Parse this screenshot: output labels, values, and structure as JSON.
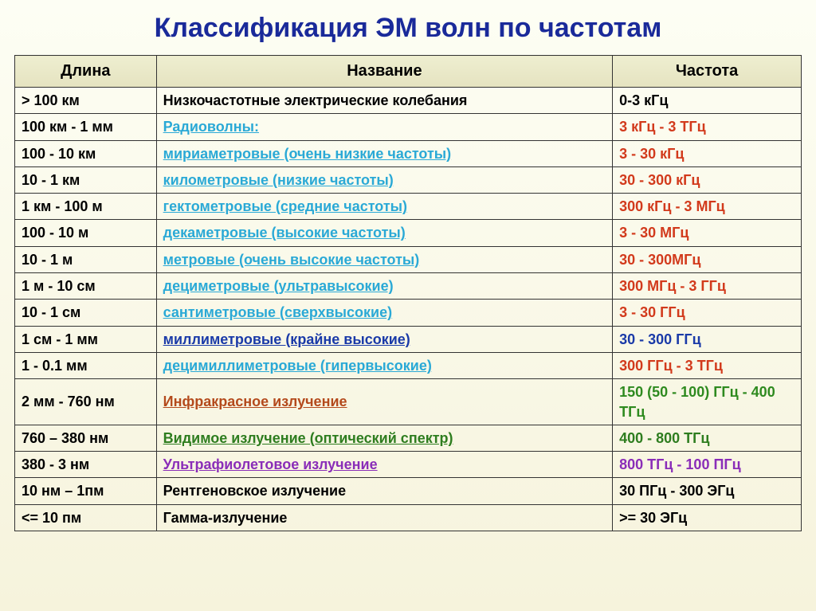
{
  "title": "Классификация ЭМ волн по частотам",
  "columns": [
    "Длина",
    "Название",
    "Частота"
  ],
  "rows": [
    {
      "length": "> 100 км",
      "name": "Низкочастотные электрические колебания",
      "freq": "0-3 кГц",
      "name_color": "#000000",
      "freq_color": "#000000",
      "name_bold": true,
      "name_underline": false
    },
    {
      "length": "100 км - 1 мм",
      "name": "Радиоволны:",
      "freq": "3 кГц - 3 ТГц",
      "name_color": "#2aa9d6",
      "freq_color": "#d23a1c",
      "name_bold": true,
      "name_underline": true
    },
    {
      "length": "100 - 10 км",
      "name": "мириаметровые (очень низкие частоты)",
      "freq": "3 - 30 кГц",
      "name_color": "#2aa9d6",
      "freq_color": "#d23a1c",
      "name_bold": true,
      "name_underline": true
    },
    {
      "length": "10 - 1 км",
      "name": "километровые (низкие частоты)",
      "freq": "30 - 300 кГц",
      "name_color": "#2aa9d6",
      "freq_color": "#d23a1c",
      "name_bold": true,
      "name_underline": true
    },
    {
      "length": "1 км - 100 м",
      "name": "гектометровые (средние частоты)",
      "freq": "300 кГц - 3 МГц",
      "name_color": "#2aa9d6",
      "freq_color": "#d23a1c",
      "name_bold": true,
      "name_underline": true
    },
    {
      "length": "100 - 10 м",
      "name": "декаметровые (высокие частоты)",
      "freq": "3 - 30 МГц",
      "name_color": "#2aa9d6",
      "freq_color": "#d23a1c",
      "name_bold": true,
      "name_underline": true
    },
    {
      "length": "10 - 1 м",
      "name": "метровые (очень высокие частоты)",
      "freq": "30 - 300МГц",
      "name_color": "#2aa9d6",
      "freq_color": "#d23a1c",
      "name_bold": true,
      "name_underline": true
    },
    {
      "length": "1 м - 10 см",
      "name": "дециметровые (ультравысокие)",
      "freq": "300 МГц - 3 ГГц",
      "name_color": "#2aa9d6",
      "freq_color": "#d23a1c",
      "name_bold": true,
      "name_underline": true
    },
    {
      "length": "10 - 1 см",
      "name": "сантиметровые (сверхвысокие)",
      "freq": "3 - 30 ГГц",
      "name_color": "#2aa9d6",
      "freq_color": "#d23a1c",
      "name_bold": true,
      "name_underline": true
    },
    {
      "length": "1 см - 1 мм",
      "name": "миллиметровые (крайне высокие)",
      "freq": "30 - 300 ГГц",
      "name_color": "#1a3aa8",
      "freq_color": "#1a3aa8",
      "name_bold": true,
      "name_underline": true
    },
    {
      "length": "1 - 0.1 мм",
      "name": "децимиллиметровые (гипервысокие)",
      "freq": "300 ГГц - 3 ТГц",
      "name_color": "#2aa9d6",
      "freq_color": "#d23a1c",
      "name_bold": true,
      "name_underline": true
    },
    {
      "length": "2 мм - 760 нм",
      "name": "Инфракрасное излучение",
      "freq": "150 (50 - 100) ГГц - 400 ТГц",
      "name_color": "#b44a1c",
      "freq_color": "#2e8a1f",
      "name_bold": true,
      "name_underline": true
    },
    {
      "length": "760 – 380 нм",
      "name": "Видимое излучение (оптический спектр)",
      "freq": "400 - 800 ТГц",
      "name_color": "#2e7d1f",
      "freq_color": "#2e7d1f",
      "name_bold": true,
      "name_underline": true
    },
    {
      "length": "380 - 3 нм",
      "name": "Ультрафиолетовое излучение",
      "freq": "800 ТГц - 100 ПГц",
      "name_color": "#8a2db8",
      "freq_color": "#8a2db8",
      "name_bold": true,
      "name_underline": true
    },
    {
      "length": "10 нм – 1пм",
      "name": "Рентгеновское излучение",
      "freq": "30 ПГц - 300 ЭГц",
      "name_color": "#000000",
      "freq_color": "#000000",
      "name_bold": true,
      "name_underline": false
    },
    {
      "length": "<= 10 пм",
      "name": "Гамма-излучение",
      "freq": ">= 30 ЭГц",
      "name_color": "#000000",
      "freq_color": "#000000",
      "name_bold": true,
      "name_underline": false
    }
  ]
}
